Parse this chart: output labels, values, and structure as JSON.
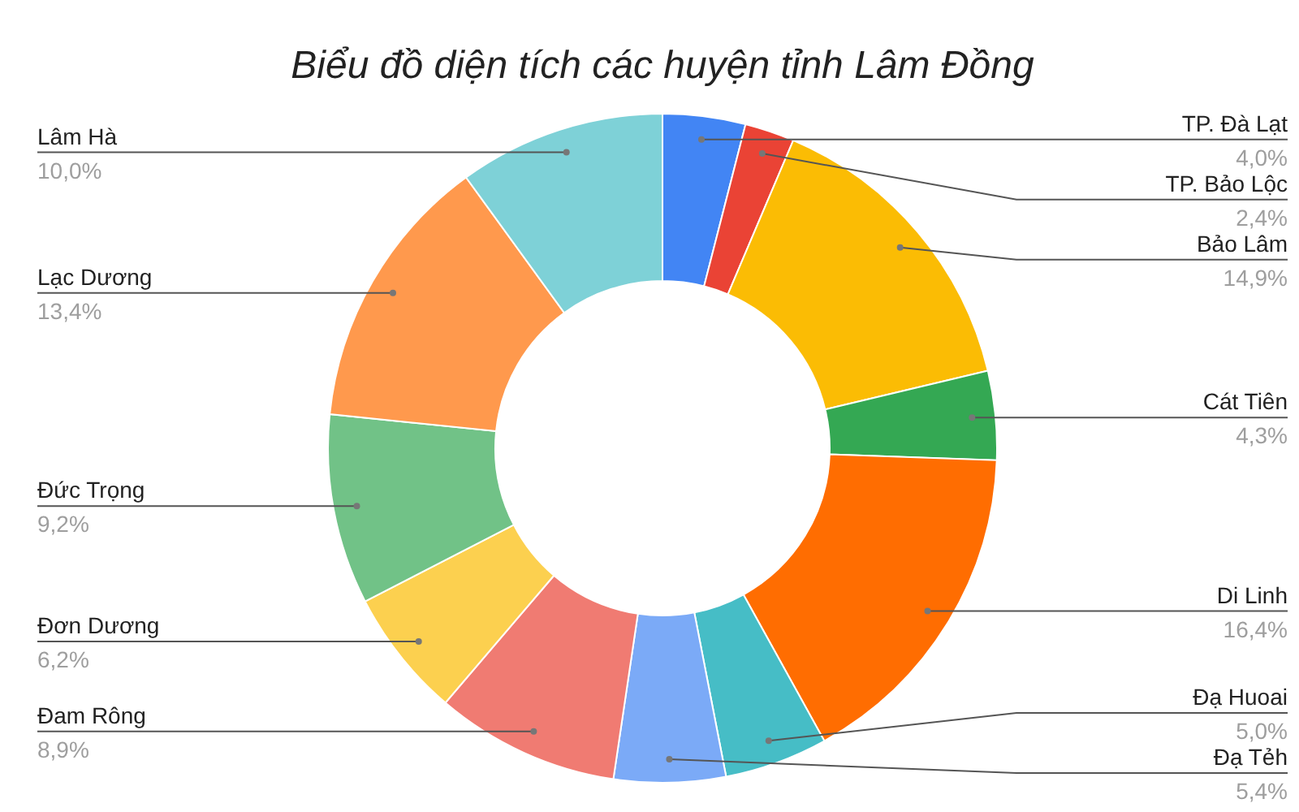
{
  "chart_data": {
    "type": "donut",
    "title": "Biểu đồ diện tích các huyện tỉnh Lâm Đồng",
    "categories": [
      "TP. Đà Lạt",
      "TP. Bảo Lộc",
      "Bảo Lâm",
      "Cát Tiên",
      "Di Linh",
      "Đạ Huoai",
      "Đạ Tẻh",
      "Đam Rông",
      "Đơn Dương",
      "Đức Trọng",
      "Lạc Dương",
      "Lâm Hà"
    ],
    "values": [
      4.0,
      2.4,
      14.9,
      4.3,
      16.4,
      5.0,
      5.4,
      8.9,
      6.2,
      9.2,
      13.4,
      10.0
    ],
    "value_labels": [
      "4,0%",
      "2,4%",
      "14,9%",
      "4,3%",
      "16,4%",
      "5,0%",
      "5,4%",
      "8,9%",
      "6,2%",
      "9,2%",
      "13,4%",
      "10,0%"
    ],
    "colors": [
      "#4285f4",
      "#ea4335",
      "#fbbc04",
      "#34a853",
      "#ff6d01",
      "#46bdc6",
      "#7baaf7",
      "#f07b72",
      "#fcd04f",
      "#71c287",
      "#ff994d",
      "#7ed1d7"
    ]
  }
}
